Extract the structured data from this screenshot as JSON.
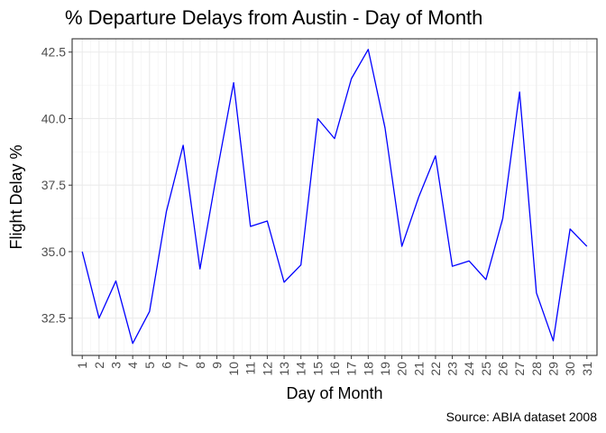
{
  "chart_data": {
    "type": "line",
    "title": "% Departure Delays from Austin - Day of Month",
    "xlabel": "Day of Month",
    "ylabel": "Flight Delay %",
    "caption": "Source: ABIA dataset 2008",
    "x": [
      1,
      2,
      3,
      4,
      5,
      6,
      7,
      8,
      9,
      10,
      11,
      12,
      13,
      14,
      15,
      16,
      17,
      18,
      19,
      20,
      21,
      22,
      23,
      24,
      25,
      26,
      27,
      28,
      29,
      30,
      31
    ],
    "series": [
      {
        "color": "#0000ff",
        "values": [
          35.0,
          32.5,
          33.9,
          31.55,
          32.75,
          36.5,
          39.0,
          34.35,
          37.95,
          41.35,
          35.95,
          36.15,
          33.85,
          34.5,
          40.0,
          39.25,
          41.5,
          42.6,
          39.65,
          35.2,
          37.05,
          38.6,
          34.45,
          34.65,
          33.95,
          36.25,
          41.0,
          33.45,
          31.65,
          35.85,
          35.2
        ]
      }
    ],
    "ylim": [
      31.1,
      43.0
    ],
    "xlim": [
      0.4,
      31.6
    ],
    "yticks": [
      "32.5",
      "35.0",
      "37.5",
      "40.0",
      "42.5"
    ],
    "grid": true,
    "legend": "none",
    "x_tick_labels_rotated": true
  }
}
